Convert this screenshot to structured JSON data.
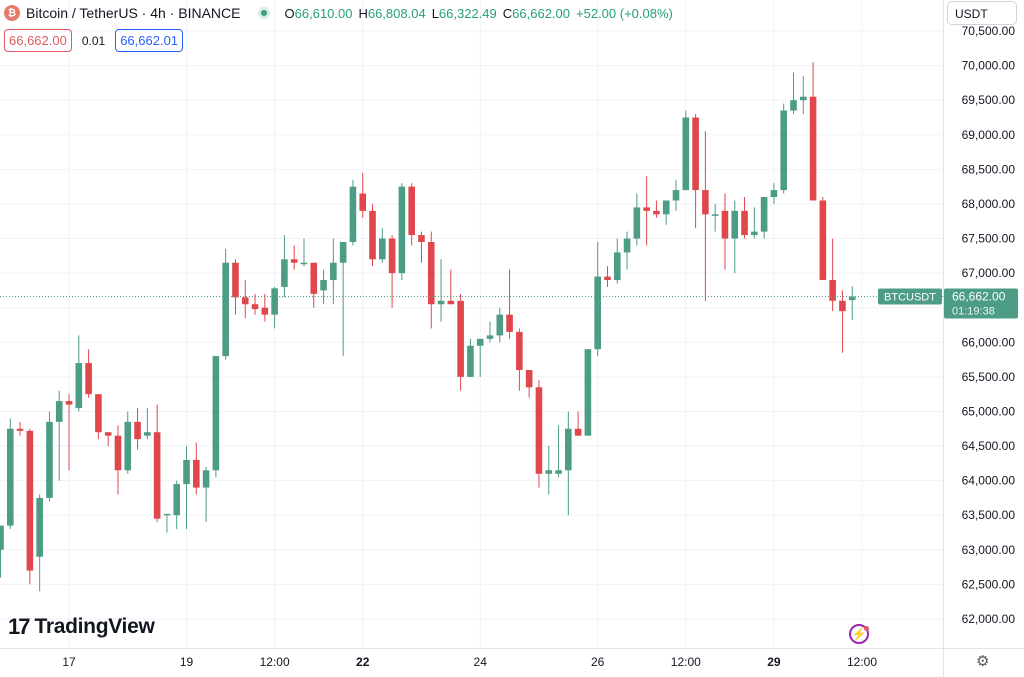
{
  "header": {
    "symbol_icon": "bitcoin-icon",
    "title": "Bitcoin / TetherUS · 4h · BINANCE",
    "open_label": "O",
    "open": "66,610.00",
    "high_label": "H",
    "high": "66,808.04",
    "low_label": "L",
    "low": "66,322.49",
    "close_label": "C",
    "close": "66,662.00",
    "change": "+52.00 (+0.08%)"
  },
  "trade": {
    "sell": "66,662.00",
    "spread": "0.01",
    "buy": "66,662.01"
  },
  "currency": "USDT",
  "brand": {
    "mark": "17",
    "name": "TradingView"
  },
  "colors": {
    "up": "#4c9c86",
    "down": "#e0474c",
    "grid": "#f0f3fa",
    "axis_text": "#131722"
  },
  "chart_data": {
    "type": "candlestick",
    "symbol": "BTCUSDT",
    "interval": "4h",
    "ylim": [
      61650,
      70650
    ],
    "y_ticks": [
      "62,000.00",
      "62,500.00",
      "63,000.00",
      "63,500.00",
      "64,000.00",
      "64,500.00",
      "65,000.00",
      "65,500.00",
      "66,000.00",
      "66,500.00",
      "67,000.00",
      "67,500.00",
      "68,000.00",
      "68,500.00",
      "69,000.00",
      "69,500.00",
      "70,000.00",
      "70,500.00"
    ],
    "x_ticks": [
      {
        "index": 7,
        "label": "17",
        "bold": false
      },
      {
        "index": 19,
        "label": "19",
        "bold": false
      },
      {
        "index": 28,
        "label": "12:00",
        "bold": false
      },
      {
        "index": 37,
        "label": "22",
        "bold": true
      },
      {
        "index": 49,
        "label": "24",
        "bold": false
      },
      {
        "index": 61,
        "label": "26",
        "bold": false
      },
      {
        "index": 70,
        "label": "12:00",
        "bold": false
      },
      {
        "index": 79,
        "label": "29",
        "bold": true
      },
      {
        "index": 88,
        "label": "12:00",
        "bold": false
      }
    ],
    "last_price": {
      "symbol": "BTCUSDT",
      "price": "66,662.00",
      "countdown": "01:19:38",
      "value": 66662
    },
    "candles": [
      {
        "o": 63000,
        "h": 63300,
        "l": 62600,
        "c": 63350
      },
      {
        "o": 63350,
        "h": 64900,
        "l": 63300,
        "c": 64750
      },
      {
        "o": 64750,
        "h": 64850,
        "l": 64650,
        "c": 64720
      },
      {
        "o": 64720,
        "h": 64750,
        "l": 62500,
        "c": 62700
      },
      {
        "o": 62900,
        "h": 63800,
        "l": 62400,
        "c": 63750
      },
      {
        "o": 63750,
        "h": 65000,
        "l": 63700,
        "c": 64850
      },
      {
        "o": 64850,
        "h": 65300,
        "l": 64000,
        "c": 65150
      },
      {
        "o": 65150,
        "h": 65250,
        "l": 64150,
        "c": 65100
      },
      {
        "o": 65050,
        "h": 66100,
        "l": 65000,
        "c": 65700
      },
      {
        "o": 65700,
        "h": 65900,
        "l": 65200,
        "c": 65250
      },
      {
        "o": 65250,
        "h": 65250,
        "l": 64600,
        "c": 64700
      },
      {
        "o": 64700,
        "h": 64700,
        "l": 64500,
        "c": 64650
      },
      {
        "o": 64650,
        "h": 64800,
        "l": 63800,
        "c": 64150
      },
      {
        "o": 64150,
        "h": 65000,
        "l": 64100,
        "c": 64850
      },
      {
        "o": 64850,
        "h": 65050,
        "l": 64450,
        "c": 64600
      },
      {
        "o": 64650,
        "h": 65050,
        "l": 64600,
        "c": 64700
      },
      {
        "o": 64700,
        "h": 65100,
        "l": 63400,
        "c": 63450
      },
      {
        "o": 63500,
        "h": 63500,
        "l": 63250,
        "c": 63520
      },
      {
        "o": 63500,
        "h": 64000,
        "l": 63300,
        "c": 63950
      },
      {
        "o": 63950,
        "h": 64500,
        "l": 63300,
        "c": 64300
      },
      {
        "o": 64300,
        "h": 64550,
        "l": 63800,
        "c": 63900
      },
      {
        "o": 63900,
        "h": 64200,
        "l": 63400,
        "c": 64150
      },
      {
        "o": 64150,
        "h": 65800,
        "l": 64050,
        "c": 65800
      },
      {
        "o": 65800,
        "h": 67350,
        "l": 65750,
        "c": 67150
      },
      {
        "o": 67150,
        "h": 67200,
        "l": 66400,
        "c": 66650
      },
      {
        "o": 66650,
        "h": 66900,
        "l": 66350,
        "c": 66550
      },
      {
        "o": 66550,
        "h": 66700,
        "l": 66400,
        "c": 66480
      },
      {
        "o": 66500,
        "h": 66700,
        "l": 66300,
        "c": 66400
      },
      {
        "o": 66400,
        "h": 66800,
        "l": 66200,
        "c": 66780
      },
      {
        "o": 66800,
        "h": 67550,
        "l": 66650,
        "c": 67200
      },
      {
        "o": 67200,
        "h": 67400,
        "l": 67050,
        "c": 67150
      },
      {
        "o": 67150,
        "h": 67500,
        "l": 67100,
        "c": 67150
      },
      {
        "o": 67150,
        "h": 67150,
        "l": 66500,
        "c": 66700
      },
      {
        "o": 66750,
        "h": 67050,
        "l": 66550,
        "c": 66900
      },
      {
        "o": 66900,
        "h": 67500,
        "l": 66550,
        "c": 67150
      },
      {
        "o": 67150,
        "h": 67400,
        "l": 65800,
        "c": 67450
      },
      {
        "o": 67450,
        "h": 68350,
        "l": 67400,
        "c": 68250
      },
      {
        "o": 68150,
        "h": 68450,
        "l": 67800,
        "c": 67900
      },
      {
        "o": 67900,
        "h": 68000,
        "l": 67100,
        "c": 67200
      },
      {
        "o": 67200,
        "h": 67650,
        "l": 67150,
        "c": 67500
      },
      {
        "o": 67500,
        "h": 67550,
        "l": 66500,
        "c": 67000
      },
      {
        "o": 67000,
        "h": 68300,
        "l": 66900,
        "c": 68250
      },
      {
        "o": 68250,
        "h": 68300,
        "l": 67400,
        "c": 67550
      },
      {
        "o": 67550,
        "h": 67600,
        "l": 67150,
        "c": 67450
      },
      {
        "o": 67450,
        "h": 67600,
        "l": 66200,
        "c": 66550
      },
      {
        "o": 66550,
        "h": 67200,
        "l": 66300,
        "c": 66600
      },
      {
        "o": 66600,
        "h": 67050,
        "l": 66550,
        "c": 66550
      },
      {
        "o": 66600,
        "h": 66700,
        "l": 65300,
        "c": 65500
      },
      {
        "o": 65500,
        "h": 66050,
        "l": 65500,
        "c": 65950
      },
      {
        "o": 65950,
        "h": 66050,
        "l": 65500,
        "c": 66050
      },
      {
        "o": 66050,
        "h": 66300,
        "l": 66000,
        "c": 66100
      },
      {
        "o": 66100,
        "h": 66500,
        "l": 66000,
        "c": 66400
      },
      {
        "o": 66400,
        "h": 67050,
        "l": 66050,
        "c": 66150
      },
      {
        "o": 66150,
        "h": 66200,
        "l": 65300,
        "c": 65600
      },
      {
        "o": 65600,
        "h": 65600,
        "l": 65200,
        "c": 65350
      },
      {
        "o": 65350,
        "h": 65450,
        "l": 63900,
        "c": 64100
      },
      {
        "o": 64100,
        "h": 64500,
        "l": 63800,
        "c": 64150
      },
      {
        "o": 64100,
        "h": 64800,
        "l": 64050,
        "c": 64150
      },
      {
        "o": 64150,
        "h": 65000,
        "l": 63500,
        "c": 64750
      },
      {
        "o": 64750,
        "h": 65000,
        "l": 64650,
        "c": 64650
      },
      {
        "o": 64650,
        "h": 65900,
        "l": 64650,
        "c": 65900
      },
      {
        "o": 65900,
        "h": 67450,
        "l": 65800,
        "c": 66950
      },
      {
        "o": 66950,
        "h": 67100,
        "l": 66800,
        "c": 66900
      },
      {
        "o": 66900,
        "h": 67500,
        "l": 66850,
        "c": 67300
      },
      {
        "o": 67300,
        "h": 67600,
        "l": 67050,
        "c": 67500
      },
      {
        "o": 67500,
        "h": 68150,
        "l": 67400,
        "c": 67950
      },
      {
        "o": 67950,
        "h": 68400,
        "l": 67400,
        "c": 67900
      },
      {
        "o": 67900,
        "h": 68050,
        "l": 67800,
        "c": 67850
      },
      {
        "o": 67850,
        "h": 68000,
        "l": 67700,
        "c": 68050
      },
      {
        "o": 68050,
        "h": 68350,
        "l": 67900,
        "c": 68200
      },
      {
        "o": 68200,
        "h": 69350,
        "l": 68200,
        "c": 69250
      },
      {
        "o": 69250,
        "h": 69300,
        "l": 67650,
        "c": 68200
      },
      {
        "o": 68200,
        "h": 69050,
        "l": 66600,
        "c": 67850
      },
      {
        "o": 67850,
        "h": 68000,
        "l": 67600,
        "c": 67850
      },
      {
        "o": 67900,
        "h": 68150,
        "l": 67050,
        "c": 67500
      },
      {
        "o": 67500,
        "h": 68050,
        "l": 67000,
        "c": 67900
      },
      {
        "o": 67900,
        "h": 68100,
        "l": 67500,
        "c": 67550
      },
      {
        "o": 67550,
        "h": 67950,
        "l": 67500,
        "c": 67600
      },
      {
        "o": 67600,
        "h": 68100,
        "l": 67500,
        "c": 68100
      },
      {
        "o": 68100,
        "h": 68300,
        "l": 68000,
        "c": 68200
      },
      {
        "o": 68200,
        "h": 69450,
        "l": 68150,
        "c": 69350
      },
      {
        "o": 69350,
        "h": 69900,
        "l": 69300,
        "c": 69500
      },
      {
        "o": 69500,
        "h": 69850,
        "l": 69300,
        "c": 69550
      },
      {
        "o": 69550,
        "h": 70050,
        "l": 68050,
        "c": 68050
      },
      {
        "o": 68050,
        "h": 68100,
        "l": 66900,
        "c": 66900
      },
      {
        "o": 66900,
        "h": 67500,
        "l": 66450,
        "c": 66600
      },
      {
        "o": 66600,
        "h": 66750,
        "l": 65850,
        "c": 66450
      },
      {
        "o": 66610,
        "h": 66808,
        "l": 66322,
        "c": 66662
      }
    ]
  }
}
